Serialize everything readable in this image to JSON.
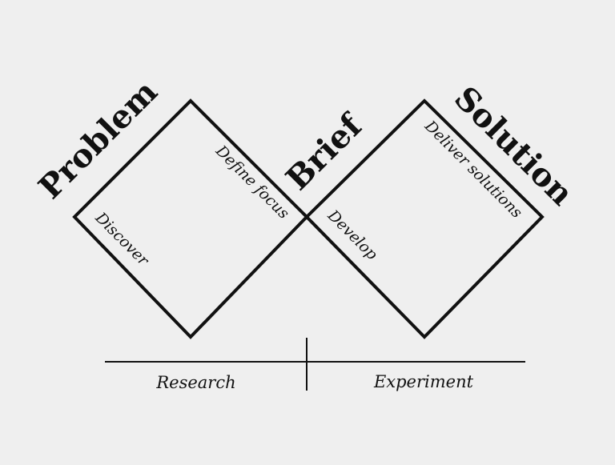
{
  "colors": {
    "background": "#efefef",
    "ink": "#111111"
  },
  "diamonds": [
    {
      "name": "diamond-problem",
      "heading": "Problem",
      "phases": [
        "Discover",
        "Define focus"
      ]
    },
    {
      "name": "diamond-solution",
      "heading": "Solution",
      "phases": [
        "Develop",
        "Deliver solutions"
      ]
    }
  ],
  "center_label": "Brief",
  "stages": [
    "Research",
    "Experiment"
  ]
}
